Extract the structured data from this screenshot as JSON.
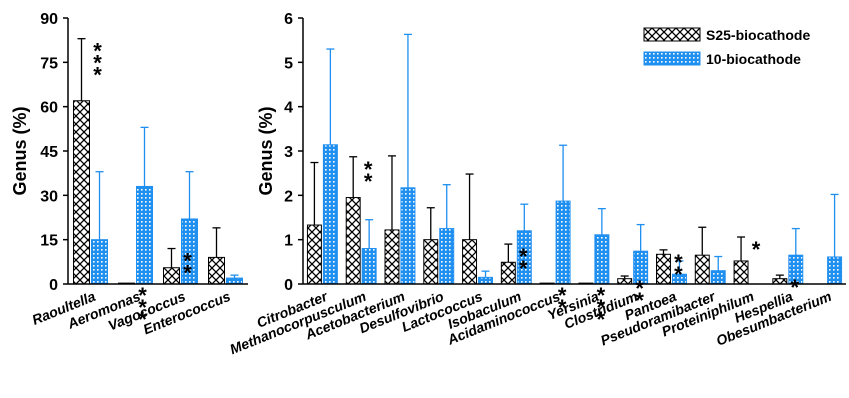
{
  "legend": {
    "s25_label": "S25-biocathode",
    "bio10_label": "10-biocathode",
    "placement": "top-right"
  },
  "colors": {
    "s25_hatch": "#000000",
    "bio10_fill": "#1f8ff0",
    "axis": "#000000"
  },
  "chart_data": [
    {
      "type": "bar",
      "panel": "left",
      "ylabel": "Genus (%)",
      "ylim": [
        0,
        90
      ],
      "yticks": [
        0,
        15,
        30,
        45,
        60,
        75,
        90
      ],
      "categories": [
        "Raoultella",
        "Aeromonas",
        "Vagococcus",
        "Enterococcus"
      ],
      "series": [
        {
          "name": "S25-biocathode",
          "values": [
            62,
            0.3,
            5.5,
            9
          ],
          "err_top": [
            83,
            0.3,
            12,
            19
          ]
        },
        {
          "name": "10-biocathode",
          "values": [
            15,
            33,
            22,
            2
          ],
          "err_top": [
            38,
            53,
            38,
            3
          ]
        }
      ],
      "significance": [
        "***",
        "***",
        "**",
        ""
      ]
    },
    {
      "type": "bar",
      "panel": "right",
      "ylabel": "Genus (%)",
      "ylim": [
        0,
        6
      ],
      "yticks": [
        0,
        1,
        2,
        3,
        4,
        5,
        6
      ],
      "categories": [
        "Citrobacter",
        "Methanocorpusculum",
        "Acetobacterium",
        "Desulfovibrio",
        "Lactococcus",
        "Isobaculum",
        "Acidaminococcus",
        "Yersinia",
        "Clostridium",
        "Pantoea",
        "Pseudoramibacter",
        "Proteiniphilum",
        "Hespellia",
        "Obesumbacterium"
      ],
      "series": [
        {
          "name": "S25-biocathode",
          "values": [
            1.33,
            1.95,
            1.22,
            1.0,
            1.0,
            0.49,
            0.02,
            0.02,
            0.12,
            0.67,
            0.65,
            0.52,
            0.12,
            0.0
          ],
          "err_top": [
            2.74,
            2.87,
            2.89,
            1.72,
            2.48,
            0.9,
            0.02,
            0.02,
            0.18,
            0.77,
            1.28,
            1.06,
            0.2,
            0.0
          ]
        },
        {
          "name": "10-biocathode",
          "values": [
            3.14,
            0.8,
            2.17,
            1.25,
            0.15,
            1.2,
            1.87,
            1.11,
            0.74,
            0.22,
            0.3,
            0.0,
            0.65,
            0.61
          ],
          "err_top": [
            5.3,
            1.45,
            5.63,
            2.24,
            0.29,
            1.8,
            3.13,
            1.7,
            1.34,
            0.52,
            0.62,
            0.0,
            1.25,
            2.02
          ]
        }
      ],
      "significance": [
        "",
        "**",
        "",
        "",
        "",
        "**",
        "**",
        "***",
        "**",
        "**",
        "",
        "*",
        "*",
        ""
      ]
    }
  ]
}
